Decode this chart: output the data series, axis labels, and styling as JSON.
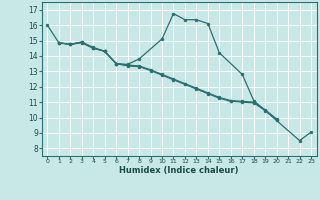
{
  "xlabel": "Humidex (Indice chaleur)",
  "xlim": [
    -0.5,
    23.5
  ],
  "ylim": [
    7.5,
    17.5
  ],
  "yticks": [
    8,
    9,
    10,
    11,
    12,
    13,
    14,
    15,
    16,
    17
  ],
  "xticks": [
    0,
    1,
    2,
    3,
    4,
    5,
    6,
    7,
    8,
    9,
    10,
    11,
    12,
    13,
    14,
    15,
    16,
    17,
    18,
    19,
    20,
    21,
    22,
    23
  ],
  "background_color": "#c8e8e8",
  "grid_color": "#ffffff",
  "line_color": "#2a7070",
  "line1_x": [
    0,
    1,
    2,
    3,
    4,
    5,
    6,
    7,
    8,
    10,
    11,
    12,
    13,
    14,
    15,
    17,
    18,
    22,
    23
  ],
  "line1_y": [
    16.0,
    14.85,
    14.75,
    14.9,
    14.55,
    14.3,
    13.5,
    13.45,
    13.8,
    15.1,
    16.75,
    16.35,
    16.35,
    16.1,
    14.2,
    12.8,
    11.1,
    8.5,
    9.05
  ],
  "line2_x": [
    1,
    2,
    3,
    4,
    5,
    6,
    7,
    8,
    9,
    10,
    11,
    12,
    13,
    14,
    15,
    16,
    17,
    18,
    19,
    20
  ],
  "line2_y": [
    14.85,
    14.75,
    14.9,
    14.5,
    14.3,
    13.5,
    13.4,
    13.35,
    13.1,
    12.8,
    12.5,
    12.2,
    11.9,
    11.6,
    11.3,
    11.1,
    11.05,
    11.0,
    10.5,
    9.9
  ],
  "line3_x": [
    1,
    2,
    3,
    4,
    5,
    6,
    7,
    8,
    9,
    10,
    11,
    12,
    13,
    14,
    15,
    16,
    17,
    18,
    19,
    20
  ],
  "line3_y": [
    14.85,
    14.75,
    14.85,
    14.5,
    14.3,
    13.5,
    13.35,
    13.3,
    13.05,
    12.75,
    12.45,
    12.15,
    11.85,
    11.55,
    11.25,
    11.05,
    11.0,
    10.95,
    10.45,
    9.85
  ]
}
